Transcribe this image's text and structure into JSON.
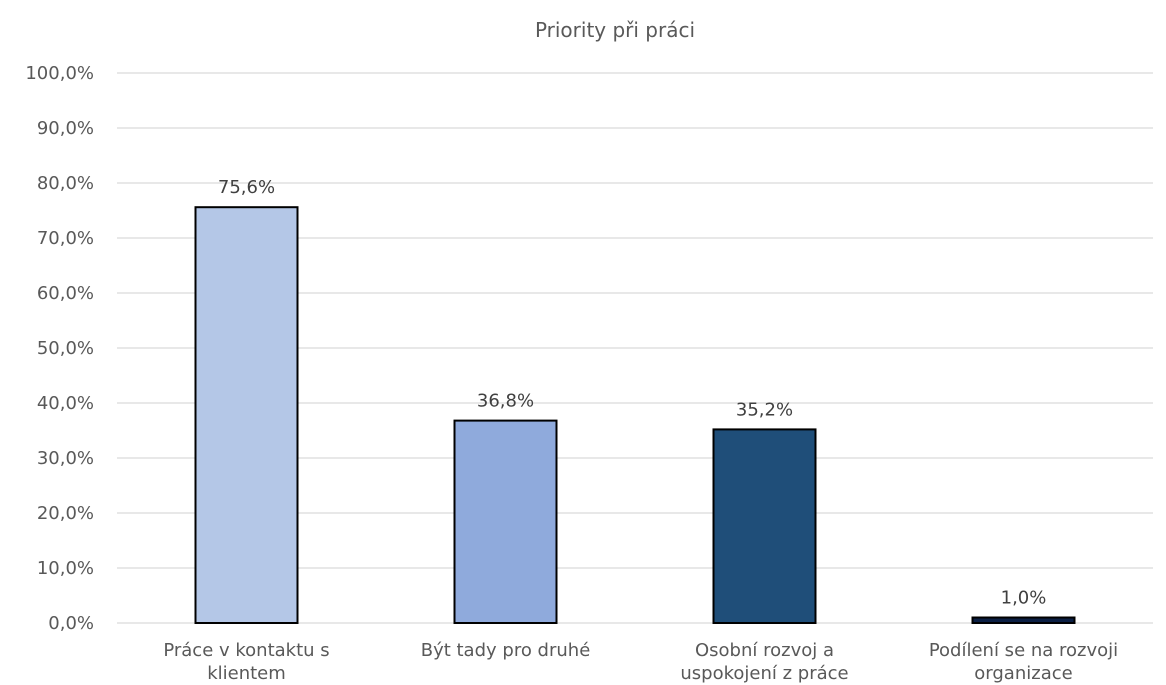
{
  "chart_data": {
    "type": "bar",
    "title": "Priority při práci",
    "categories": [
      [
        "Práce v kontaktu s",
        "klientem"
      ],
      [
        "Být tady pro druhé"
      ],
      [
        "Osobní rozvoj a",
        "uspokojení z práce"
      ],
      [
        "Podílení se na rozvoji",
        "organizace"
      ]
    ],
    "values": [
      75.6,
      36.8,
      35.2,
      1.0
    ],
    "value_labels": [
      "75,6%",
      "36,8%",
      "35,2%",
      "1,0%"
    ],
    "bar_colors": [
      "#b4c7e7",
      "#8faadc",
      "#1f4e79",
      "#0b1f44"
    ],
    "ylim": [
      0,
      100
    ],
    "y_ticks": [
      0,
      10,
      20,
      30,
      40,
      50,
      60,
      70,
      80,
      90,
      100
    ],
    "y_tick_labels": [
      "0,0%",
      "10,0%",
      "20,0%",
      "30,0%",
      "40,0%",
      "50,0%",
      "60,0%",
      "70,0%",
      "80,0%",
      "90,0%",
      "100,0%"
    ],
    "grid": true,
    "legend": "none"
  }
}
